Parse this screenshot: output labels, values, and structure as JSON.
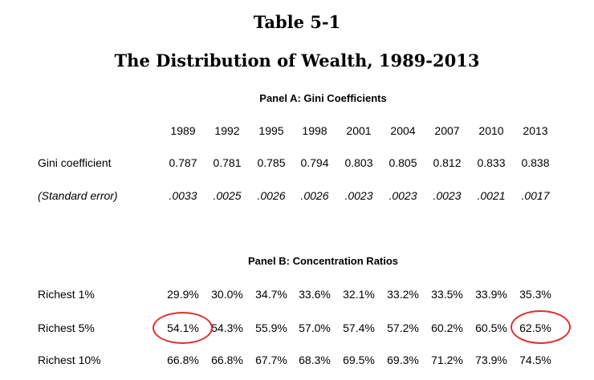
{
  "table_title": "Table 5-1",
  "table_subtitle": "The Distribution of Wealth, 1989-2013",
  "panel_a": {
    "heading": "Panel A:  Gini Coefficients",
    "years": [
      "1989",
      "1992",
      "1995",
      "1998",
      "2001",
      "2004",
      "2007",
      "2010",
      "2013"
    ],
    "rows": [
      {
        "label": "Gini coefficient",
        "values": [
          "0.787",
          "0.781",
          "0.785",
          "0.794",
          "0.803",
          "0.805",
          "0.812",
          "0.833",
          "0.838"
        ]
      },
      {
        "label": "(Standard error)",
        "values": [
          ".0033",
          ".0025",
          ".0026",
          ".0026",
          ".0023",
          ".0023",
          ".0023",
          ".0021",
          ".0017"
        ]
      }
    ]
  },
  "panel_b": {
    "heading": "Panel B:  Concentration Ratios",
    "rows": [
      {
        "label": "Richest 1%",
        "values": [
          "29.9%",
          "30.0%",
          "34.7%",
          "33.6%",
          "32.1%",
          "33.2%",
          "33.5%",
          "33.9%",
          "35.3%"
        ]
      },
      {
        "label": "Richest 5%",
        "values": [
          "54.1%",
          "54.3%",
          "55.9%",
          "57.0%",
          "57.4%",
          "57.2%",
          "60.2%",
          "60.5%",
          "62.5%"
        ]
      },
      {
        "label": "Richest 10%",
        "values": [
          "66.8%",
          "66.8%",
          "67.7%",
          "68.3%",
          "69.5%",
          "69.3%",
          "71.2%",
          "73.9%",
          "74.5%"
        ]
      }
    ]
  },
  "annotation_color": "#e03030"
}
